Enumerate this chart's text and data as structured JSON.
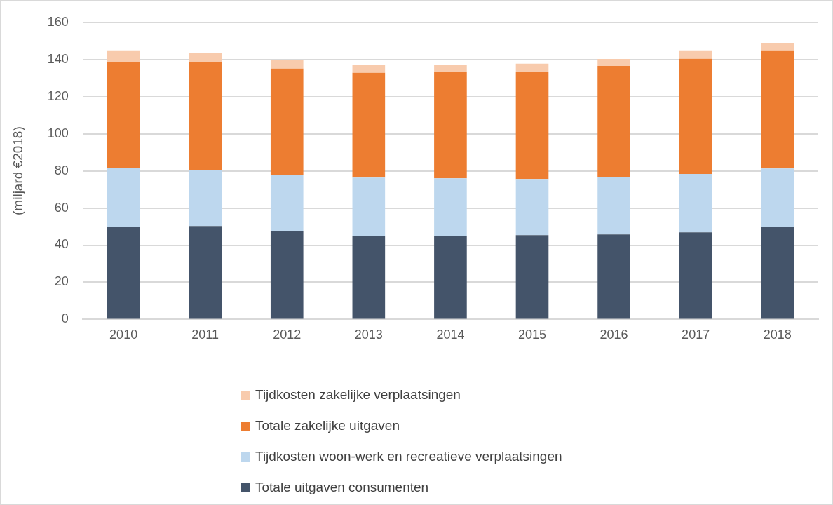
{
  "chart_data": {
    "type": "bar",
    "stacked": true,
    "ylabel": "(miljard €2018)",
    "categories": [
      "2010",
      "2011",
      "2012",
      "2013",
      "2014",
      "2015",
      "2016",
      "2017",
      "2018"
    ],
    "series": [
      {
        "name": "Totale uitgaven consumenten",
        "color": "#44546a",
        "values": [
          50,
          50.3,
          47.7,
          45,
          45,
          45.4,
          45.8,
          46.9,
          50
        ]
      },
      {
        "name": "Tijdkosten woon-werk en recreatieve verplaatsingen",
        "color": "#bdd7ee",
        "values": [
          31.7,
          30.3,
          30.3,
          31.4,
          31,
          30.2,
          31,
          31.4,
          31.3
        ]
      },
      {
        "name": "Totale zakelijke uitgaven",
        "color": "#ed7d31",
        "values": [
          57.1,
          57.8,
          57.1,
          56.4,
          57.1,
          57.5,
          59.7,
          62.1,
          63.2
        ]
      },
      {
        "name": "Tijdkosten zakelijke verplaatsingen",
        "color": "#f8cbad",
        "values": [
          5.7,
          5.3,
          4.5,
          4.5,
          4.2,
          4.6,
          3.8,
          4.1,
          4.1
        ]
      }
    ],
    "ylim": [
      0,
      160
    ],
    "yticks": [
      0,
      20,
      40,
      60,
      80,
      100,
      120,
      140,
      160
    ],
    "grid": "y",
    "legend": "bottom"
  }
}
